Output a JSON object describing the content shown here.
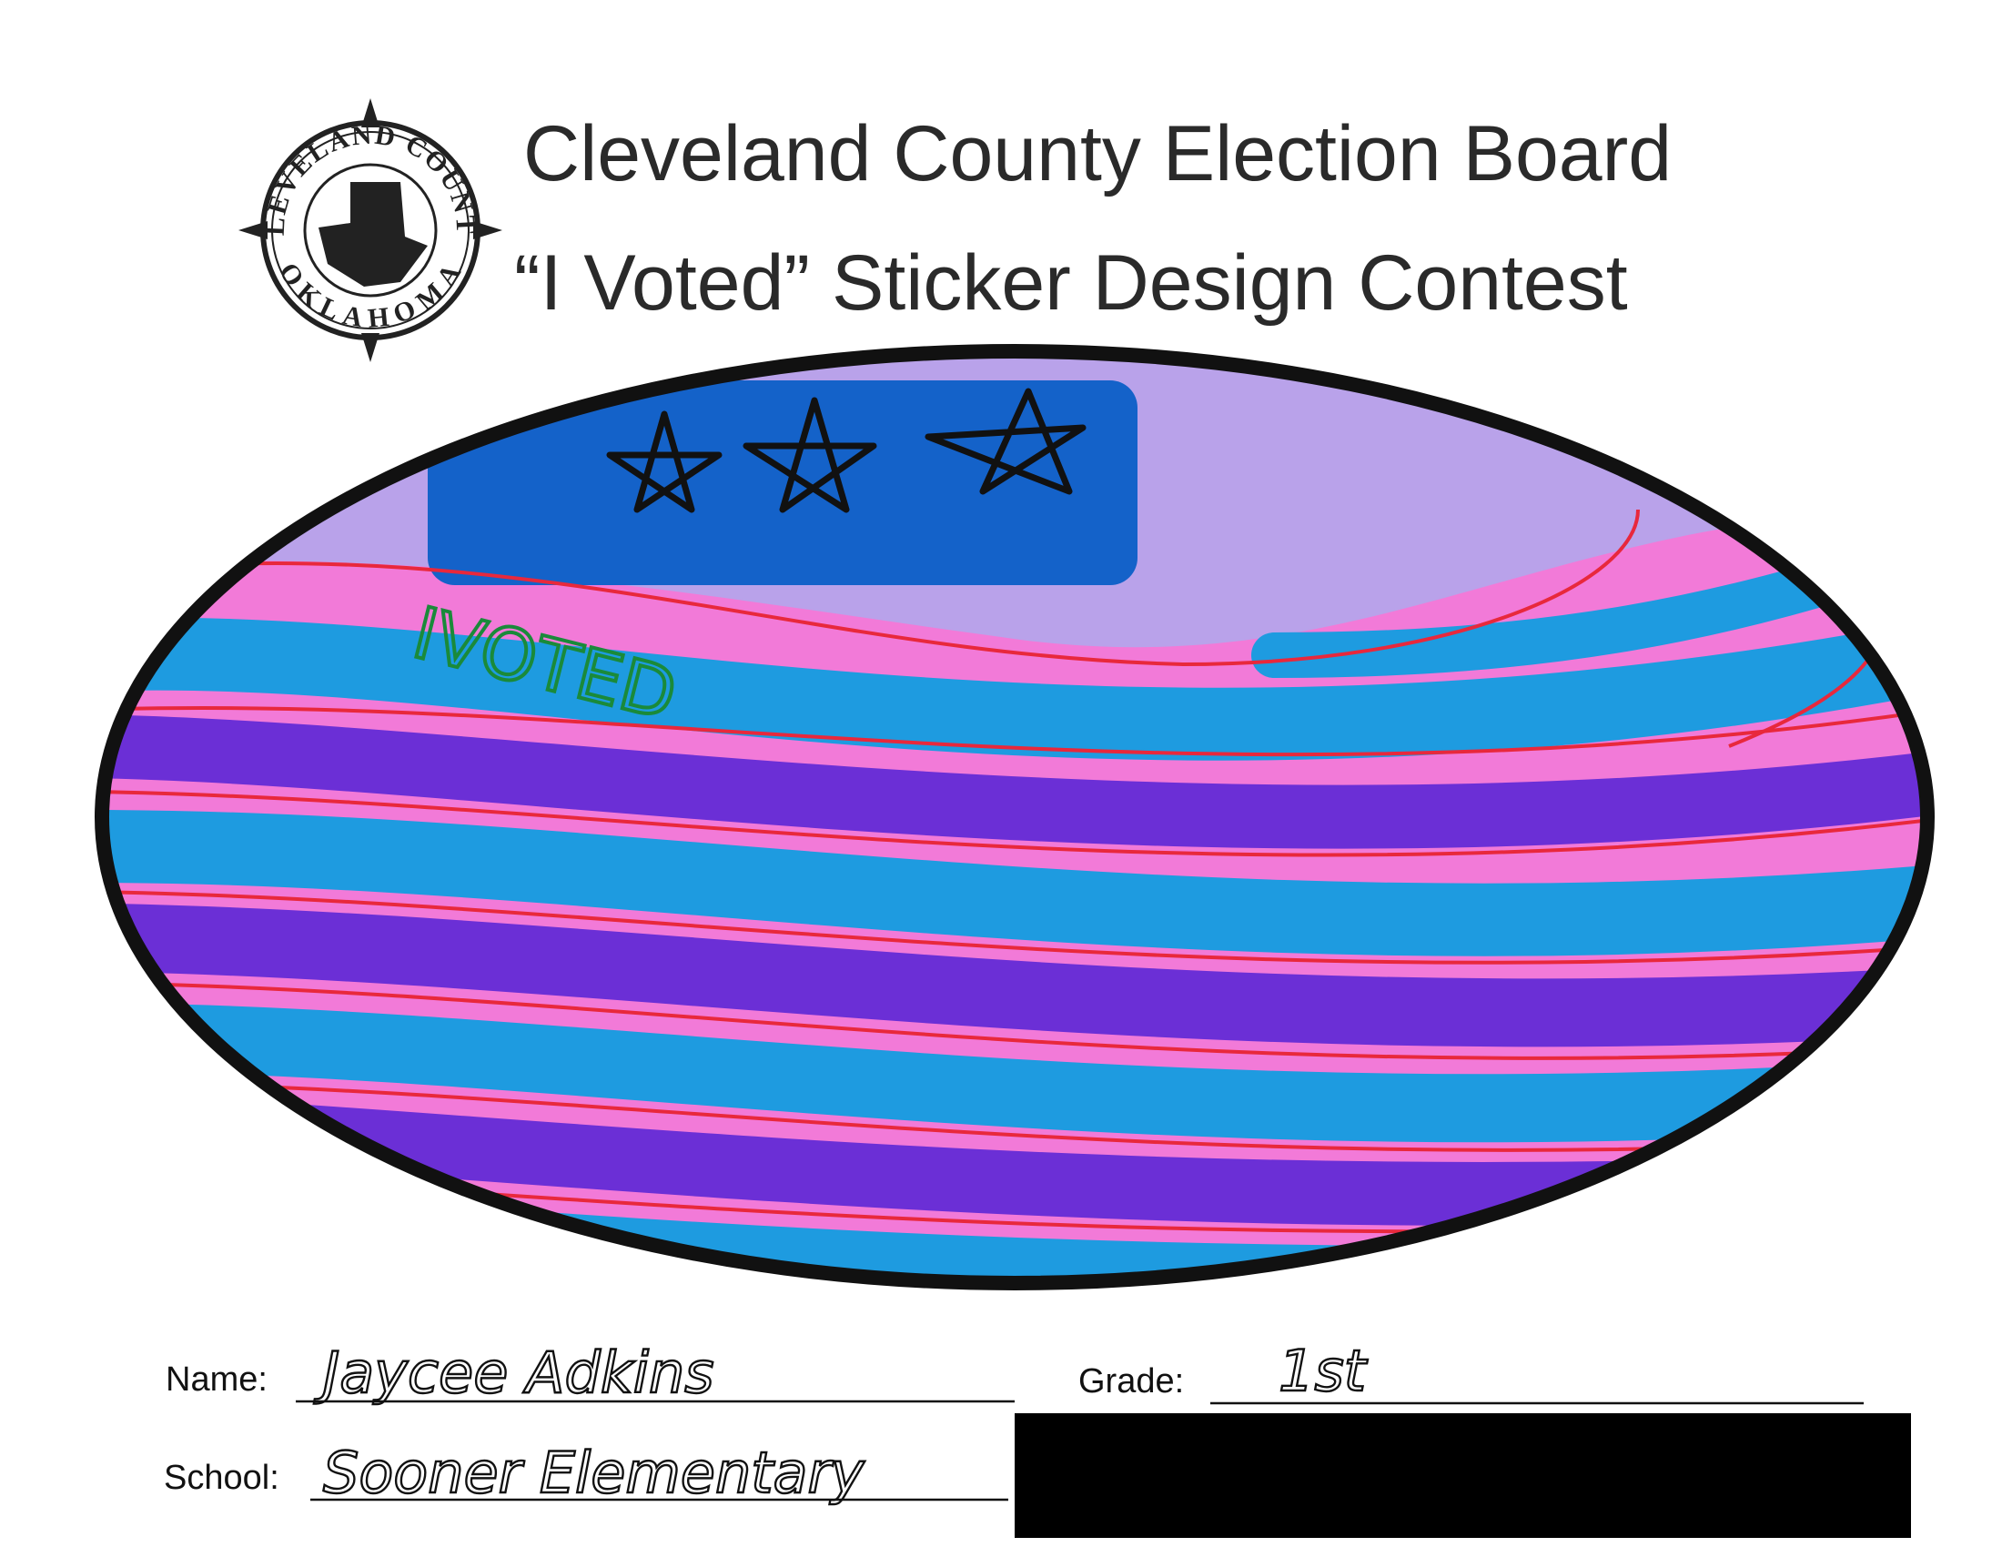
{
  "header": {
    "title": "Cleveland County Election Board",
    "subtitle": "“I Voted” Sticker Design Contest"
  },
  "seal": {
    "top": "CLEVELAND COUNTY",
    "bottom": "OKLAHOMA"
  },
  "drawing": {
    "text": "IVOTED"
  },
  "form": {
    "name": {
      "label": "Name:",
      "value": "Jaycee Adkins"
    },
    "grade": {
      "label": "Grade:",
      "value": "1st"
    },
    "school": {
      "label": "School:",
      "value": "Sooner Elementary"
    }
  }
}
